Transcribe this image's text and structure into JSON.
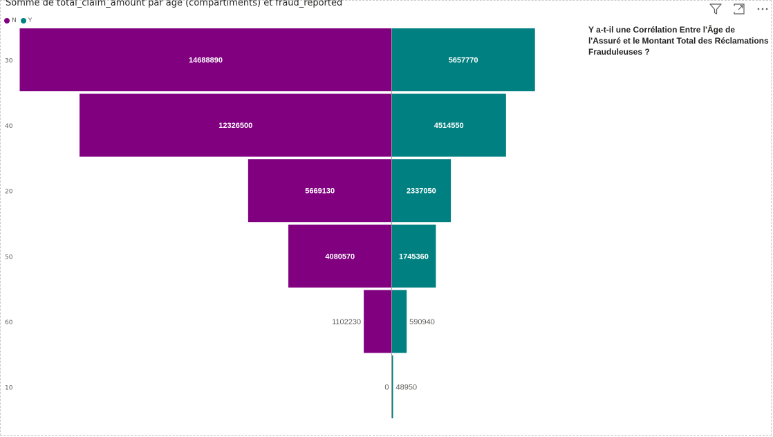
{
  "toolbar": {
    "filter_icon": "filter-icon",
    "focus_icon": "focus-mode-icon",
    "more_icon": "more-options-icon"
  },
  "question": {
    "text": "Y a-t-il une Corrélation Entre l'Âge de l'Assuré et le Montant Total des Réclamations Frauduleuses ?"
  },
  "chart_data": {
    "type": "bar",
    "title": "Somme de total_claim_amount par age (compartiments) et fraud_reported",
    "categories": [
      "30",
      "40",
      "20",
      "50",
      "60",
      "10"
    ],
    "series": [
      {
        "name": "N",
        "color": "#800080",
        "values": [
          14688890,
          12326500,
          5669130,
          4080570,
          1102230,
          0
        ]
      },
      {
        "name": "Y",
        "color": "#008080",
        "values": [
          5657770,
          4514550,
          2337050,
          1745360,
          590940,
          48950
        ]
      }
    ],
    "legend": "top-left",
    "grid": false
  }
}
